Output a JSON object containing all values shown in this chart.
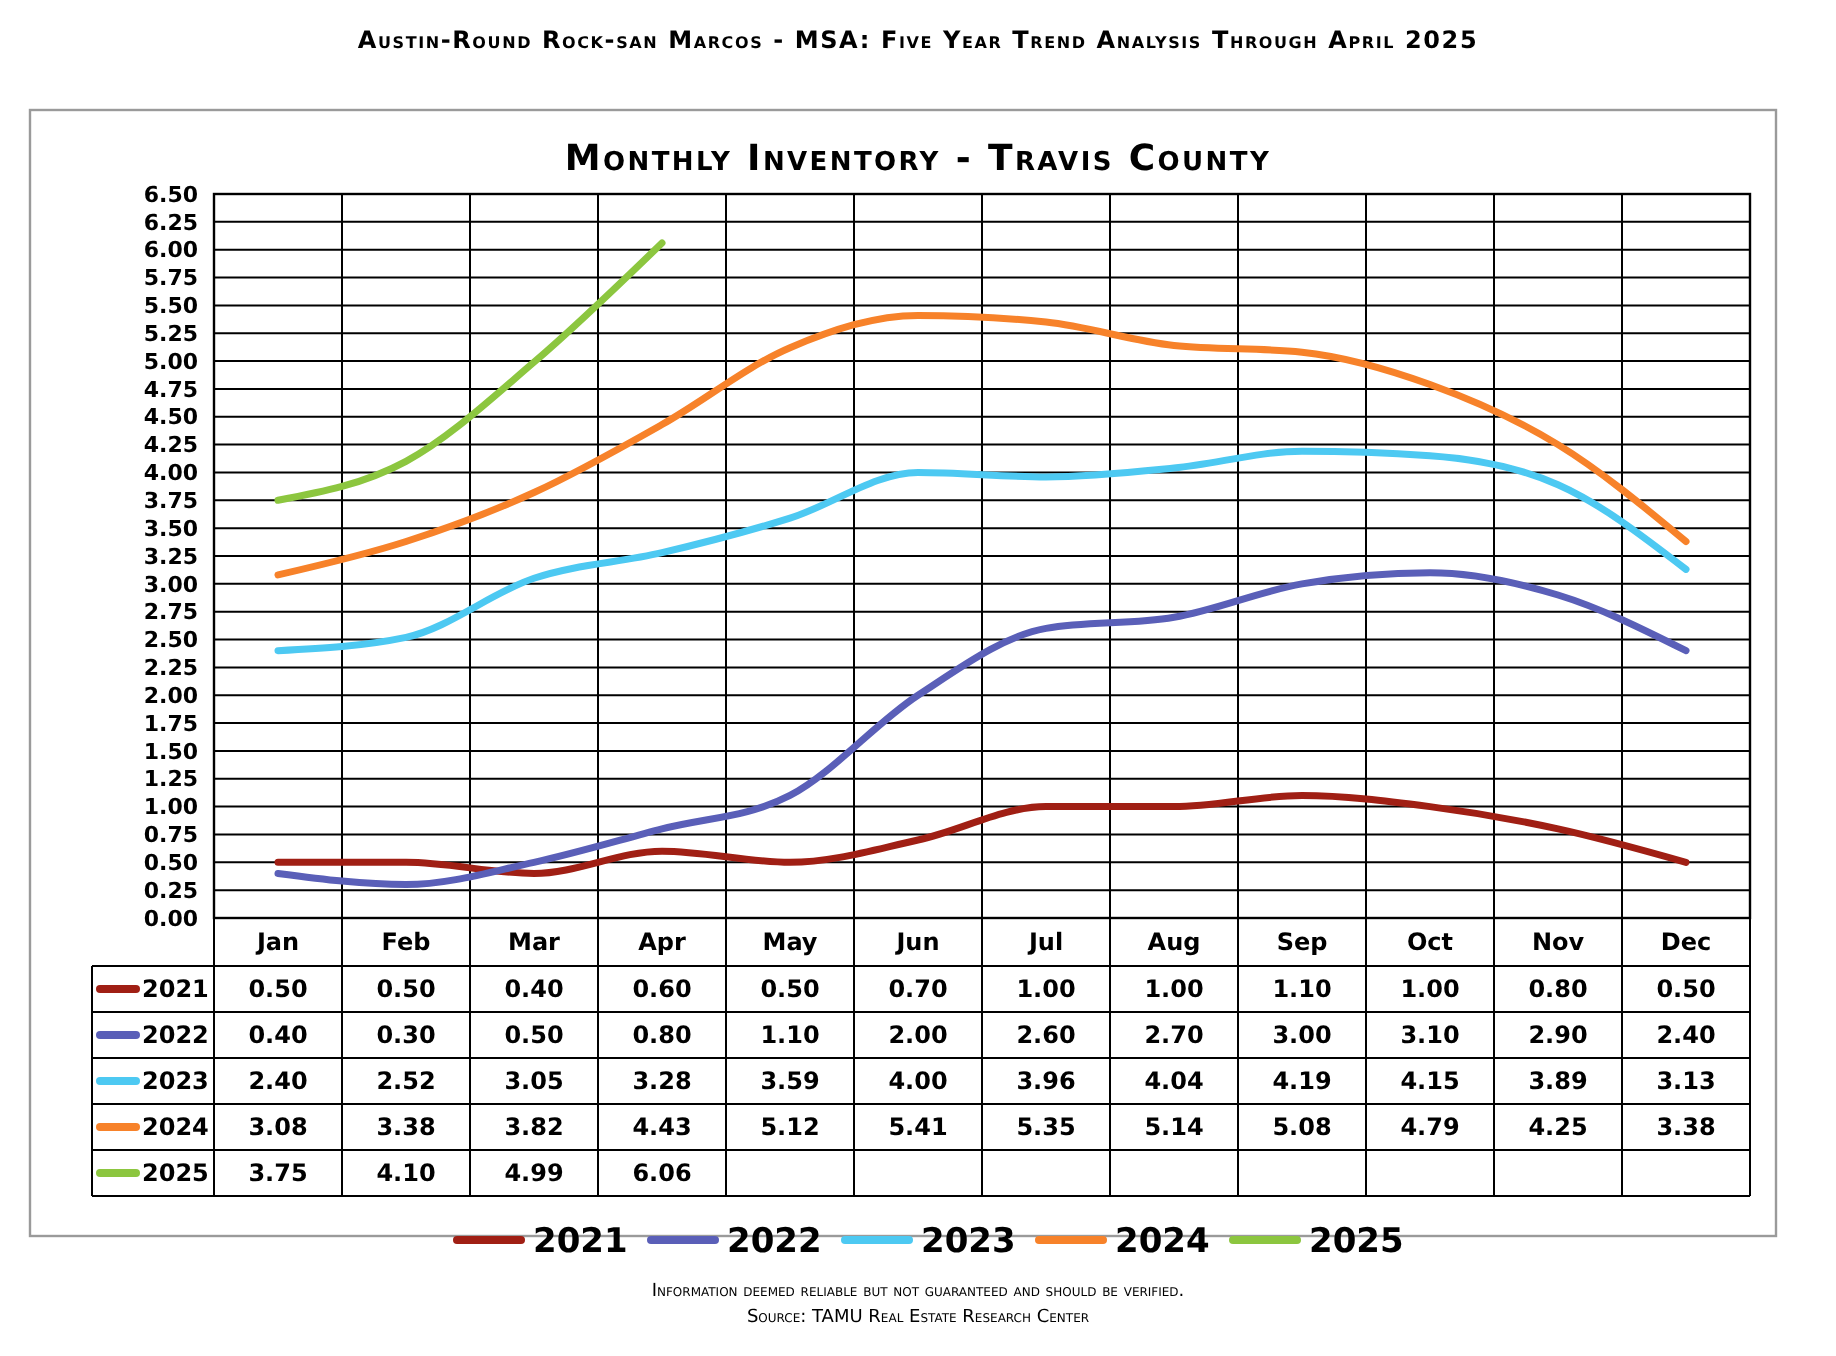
{
  "chart_data": {
    "type": "line",
    "title": "Monthly Inventory - Travis County",
    "subtitle": "Austin-Round Rock-san Marcos - MSA: Five Year Trend Analysis Through April 2025",
    "annotations": [
      "Information deemed reliable but not guaranteed and should be verified.",
      "Source: TAMU Real Estate Research Center"
    ],
    "categories": [
      "Jan",
      "Feb",
      "Mar",
      "Apr",
      "May",
      "Jun",
      "Jul",
      "Aug",
      "Sep",
      "Oct",
      "Nov",
      "Dec"
    ],
    "series": [
      {
        "name": "2021",
        "color": "#a01f14",
        "values": [
          0.5,
          0.5,
          0.4,
          0.6,
          0.5,
          0.7,
          1.0,
          1.0,
          1.1,
          1.0,
          0.8,
          0.5
        ],
        "value_labels": [
          "0.50",
          "0.50",
          "0.40",
          "0.60",
          "0.50",
          "0.70",
          "1.00",
          "1.00",
          "1.10",
          "1.00",
          "0.80",
          "0.50"
        ]
      },
      {
        "name": "2022",
        "color": "#5a5fb8",
        "values": [
          0.4,
          0.3,
          0.5,
          0.8,
          1.1,
          2.0,
          2.6,
          2.7,
          3.0,
          3.1,
          2.9,
          2.4
        ],
        "value_labels": [
          "0.40",
          "0.30",
          "0.50",
          "0.80",
          "1.10",
          "2.00",
          "2.60",
          "2.70",
          "3.00",
          "3.10",
          "2.90",
          "2.40"
        ]
      },
      {
        "name": "2023",
        "color": "#4dc9f2",
        "values": [
          2.4,
          2.52,
          3.05,
          3.28,
          3.59,
          4.0,
          3.96,
          4.04,
          4.19,
          4.15,
          3.89,
          3.13
        ],
        "value_labels": [
          "2.40",
          "2.52",
          "3.05",
          "3.28",
          "3.59",
          "4.00",
          "3.96",
          "4.04",
          "4.19",
          "4.15",
          "3.89",
          "3.13"
        ]
      },
      {
        "name": "2024",
        "color": "#f7822a",
        "values": [
          3.08,
          3.38,
          3.82,
          4.43,
          5.12,
          5.41,
          5.35,
          5.14,
          5.08,
          4.79,
          4.25,
          3.38
        ],
        "value_labels": [
          "3.08",
          "3.38",
          "3.82",
          "4.43",
          "5.12",
          "5.41",
          "5.35",
          "5.14",
          "5.08",
          "4.79",
          "4.25",
          "3.38"
        ]
      },
      {
        "name": "2025",
        "color": "#8cc63f",
        "values": [
          3.75,
          4.1,
          4.99,
          6.06,
          null,
          null,
          null,
          null,
          null,
          null,
          null,
          null
        ],
        "value_labels": [
          "3.75",
          "4.10",
          "4.99",
          "6.06",
          null,
          null,
          null,
          null,
          null,
          null,
          null,
          null
        ]
      }
    ],
    "ylim": [
      0,
      6.5
    ],
    "yticks": [
      {
        "value": 0,
        "label": "0.00"
      },
      {
        "value": 0.25,
        "label": "0.25"
      },
      {
        "value": 0.5,
        "label": "0.50"
      },
      {
        "value": 0.75,
        "label": "0.75"
      },
      {
        "value": 1,
        "label": "1.00"
      },
      {
        "value": 1.25,
        "label": "1.25"
      },
      {
        "value": 1.5,
        "label": "1.50"
      },
      {
        "value": 1.75,
        "label": "1.75"
      },
      {
        "value": 2,
        "label": "2.00"
      },
      {
        "value": 2.25,
        "label": "2.25"
      },
      {
        "value": 2.5,
        "label": "2.50"
      },
      {
        "value": 2.75,
        "label": "2.75"
      },
      {
        "value": 3,
        "label": "3.00"
      },
      {
        "value": 3.25,
        "label": "3.25"
      },
      {
        "value": 3.5,
        "label": "3.50"
      },
      {
        "value": 3.75,
        "label": "3.75"
      },
      {
        "value": 4,
        "label": "4.00"
      },
      {
        "value": 4.25,
        "label": "4.25"
      },
      {
        "value": 4.5,
        "label": "4.50"
      },
      {
        "value": 4.75,
        "label": "4.75"
      },
      {
        "value": 5,
        "label": "5.00"
      },
      {
        "value": 5.25,
        "label": "5.25"
      },
      {
        "value": 5.5,
        "label": "5.50"
      },
      {
        "value": 5.75,
        "label": "5.75"
      },
      {
        "value": 6,
        "label": "6.00"
      },
      {
        "value": 6.25,
        "label": "6.25"
      },
      {
        "value": 6.5,
        "label": "6.50"
      }
    ],
    "grid": true,
    "legend": "bottom",
    "marker": "none",
    "line_style": "solid"
  }
}
